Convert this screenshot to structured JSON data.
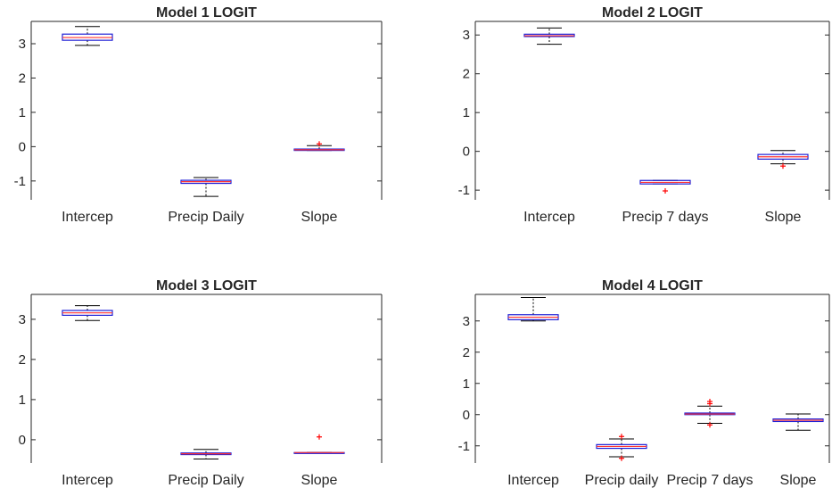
{
  "chart_data": [
    {
      "type": "box",
      "title": "Model 1 LOGIT",
      "categories": [
        "Intercep",
        "Precip Daily",
        "Slope"
      ],
      "ylim": [
        -1.55,
        3.65
      ],
      "yticks": [
        -1,
        0,
        1,
        2,
        3
      ],
      "yticklabels": [
        "-1",
        "0",
        "1",
        "2",
        "3"
      ],
      "ytick_side": "left",
      "boxes": [
        {
          "median": 3.18,
          "q1": 3.1,
          "q3": 3.28,
          "whisker_low": 2.95,
          "whisker_high": 3.5,
          "outliers": []
        },
        {
          "median": -1.02,
          "q1": -1.07,
          "q3": -0.98,
          "whisker_low": -1.45,
          "whisker_high": -0.9,
          "outliers": []
        },
        {
          "median": -0.09,
          "q1": -0.11,
          "q3": -0.07,
          "whisker_low": -0.11,
          "whisker_high": 0.03,
          "outliers": [
            0.08
          ]
        }
      ]
    },
    {
      "type": "box",
      "title": "Model 2 LOGIT",
      "categories": [
        "Intercep",
        "Precip 7 days"
      ],
      "extra_categories": [
        "Slope"
      ],
      "ylim": [
        -1.25,
        3.35
      ],
      "yticks": [
        -1,
        0,
        1,
        2,
        3
      ],
      "yticklabels": [
        "-1",
        "0",
        "1",
        "2",
        "3"
      ],
      "ytick_side": "left",
      "boxes": [
        {
          "median": 2.98,
          "q1": 2.96,
          "q3": 3.02,
          "whisker_low": 2.76,
          "whisker_high": 3.18,
          "outliers": []
        },
        {
          "median": -0.8,
          "q1": -0.84,
          "q3": -0.75,
          "whisker_low": -0.84,
          "whisker_high": -0.75,
          "outliers": [
            -1.02
          ]
        },
        {
          "median": -0.14,
          "q1": -0.2,
          "q3": -0.08,
          "whisker_low": -0.32,
          "whisker_high": 0.02,
          "outliers": [
            -0.38
          ]
        }
      ]
    },
    {
      "type": "box",
      "title": "Model 3 LOGIT",
      "categories": [
        "Intercep",
        "Precip Daily",
        "Slope"
      ],
      "ylim": [
        -0.58,
        3.62
      ],
      "yticks": [
        0,
        1,
        2,
        3
      ],
      "yticklabels": [
        "0",
        "1",
        "2",
        "3"
      ],
      "ytick_side": "left",
      "boxes": [
        {
          "median": 3.16,
          "q1": 3.1,
          "q3": 3.22,
          "whisker_low": 2.97,
          "whisker_high": 3.34,
          "outliers": []
        },
        {
          "median": -0.35,
          "q1": -0.37,
          "q3": -0.33,
          "whisker_low": -0.48,
          "whisker_high": -0.24,
          "outliers": []
        },
        {
          "median": -0.32,
          "q1": -0.32,
          "q3": -0.32,
          "whisker_low": -0.32,
          "whisker_high": -0.32,
          "outliers": [
            0.07
          ]
        }
      ]
    },
    {
      "type": "box",
      "title": "Model 4 LOGIT",
      "categories": [
        "Intercep",
        "Precip daily",
        "Precip 7 days",
        "Slope"
      ],
      "ylim": [
        -1.55,
        3.85
      ],
      "yticks": [
        -1,
        0,
        1,
        2,
        3
      ],
      "yticklabels": [
        "-1",
        "0",
        "1",
        "2",
        "3"
      ],
      "ytick_side": "left",
      "boxes": [
        {
          "median": 3.12,
          "q1": 3.04,
          "q3": 3.2,
          "whisker_low": 3.0,
          "whisker_high": 3.75,
          "outliers": []
        },
        {
          "median": -1.02,
          "q1": -1.08,
          "q3": -0.96,
          "whisker_low": -1.35,
          "whisker_high": -0.78,
          "outliers": [
            -0.7,
            -1.4
          ]
        },
        {
          "median": 0.02,
          "q1": 0.0,
          "q3": 0.05,
          "whisker_low": -0.28,
          "whisker_high": 0.27,
          "outliers": [
            0.42,
            0.35,
            -0.33
          ]
        },
        {
          "median": -0.18,
          "q1": -0.22,
          "q3": -0.14,
          "whisker_low": -0.5,
          "whisker_high": 0.02,
          "outliers": []
        }
      ]
    }
  ],
  "colors": {
    "box": "#1f1fd6",
    "median": "#ff3333",
    "whisker": "#000000",
    "outlier": "#ff0000",
    "axis": "#262626"
  }
}
